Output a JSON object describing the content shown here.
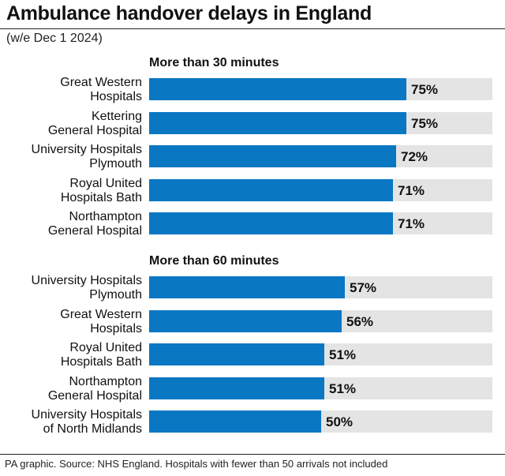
{
  "header": {
    "title": "Ambulance handover delays in England",
    "subtitle": "(w/e Dec 1 2024)"
  },
  "footer": {
    "source": "PA graphic. Source: NHS England. Hospitals with fewer than 50 arrivals not included"
  },
  "colors": {
    "bar": "#0a77c3",
    "track": "#e4e4e4"
  },
  "chart_data": [
    {
      "type": "bar",
      "orientation": "horizontal",
      "title": "More than 30 minutes",
      "categories": [
        [
          "Great Western",
          "Hospitals"
        ],
        [
          "Kettering",
          "General Hospital"
        ],
        [
          "University Hospitals",
          "Plymouth"
        ],
        [
          "Royal United",
          "Hospitals Bath"
        ],
        [
          "Northampton",
          "General Hospital"
        ]
      ],
      "values": [
        75,
        75,
        72,
        71,
        71
      ],
      "labels": [
        "75%",
        "75%",
        "72%",
        "71%",
        "71%"
      ],
      "xlim": [
        0,
        100
      ]
    },
    {
      "type": "bar",
      "orientation": "horizontal",
      "title": "More than 60 minutes",
      "categories": [
        [
          "University Hospitals",
          "Plymouth"
        ],
        [
          "Great Western",
          "Hospitals"
        ],
        [
          "Royal United",
          "Hospitals Bath"
        ],
        [
          "Northampton",
          "General Hospital"
        ],
        [
          "University Hospitals",
          "of North Midlands"
        ]
      ],
      "values": [
        57,
        56,
        51,
        51,
        50
      ],
      "labels": [
        "57%",
        "56%",
        "51%",
        "51%",
        "50%"
      ],
      "xlim": [
        0,
        100
      ]
    }
  ]
}
